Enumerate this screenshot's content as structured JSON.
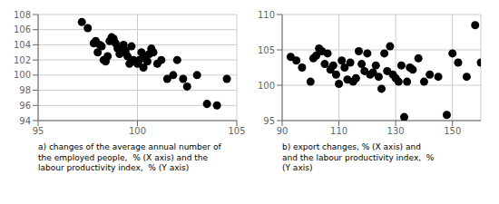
{
  "chart_data": [
    {
      "type": "scatter",
      "title": "a) changes of the average annual number of\nthe employed people,  % (X axis) and the\nlabour productivity index,  % (Y axis)",
      "x": [
        97.2,
        97.5,
        97.8,
        97.9,
        98.0,
        98.1,
        98.2,
        98.3,
        98.4,
        98.5,
        98.6,
        98.7,
        98.8,
        98.9,
        99.0,
        99.1,
        99.2,
        99.3,
        99.4,
        99.5,
        99.6,
        99.7,
        99.8,
        100.0,
        100.1,
        100.2,
        100.3,
        100.4,
        100.5,
        100.6,
        100.7,
        100.8,
        101.0,
        101.2,
        101.5,
        101.8,
        102.0,
        102.3,
        102.5,
        103.0,
        103.5,
        104.0,
        104.5
      ],
      "values": [
        107.0,
        106.2,
        104.2,
        104.5,
        103.0,
        104.0,
        103.8,
        102.0,
        101.8,
        102.5,
        104.5,
        105.0,
        104.8,
        104.2,
        103.5,
        102.8,
        103.0,
        104.0,
        103.2,
        102.5,
        101.5,
        103.8,
        102.0,
        101.5,
        102.0,
        103.0,
        101.0,
        102.5,
        101.8,
        102.8,
        103.5,
        103.0,
        101.5,
        102.0,
        99.5,
        100.0,
        102.0,
        99.5,
        98.5,
        100.0,
        96.2,
        96.0,
        99.5
      ],
      "color": "#000000",
      "xlim": [
        95,
        105
      ],
      "ylim": [
        94,
        108
      ],
      "xticks": [
        95,
        100,
        105
      ],
      "yticks": [
        94,
        96,
        98,
        100,
        102,
        104,
        106,
        108
      ],
      "grid": true
    },
    {
      "type": "scatter",
      "title": "b) export changes, % (X axis) and\nand the labour productivity index,  %\n(Y axis)",
      "x": [
        93,
        95,
        97,
        100,
        101,
        102,
        103,
        104,
        105,
        106,
        107,
        108,
        109,
        110,
        111,
        112,
        113,
        114,
        115,
        116,
        117,
        118,
        119,
        120,
        121,
        122,
        123,
        124,
        125,
        126,
        127,
        128,
        129,
        130,
        131,
        132,
        133,
        134,
        135,
        136,
        138,
        140,
        142,
        145,
        148,
        150,
        152,
        155,
        158,
        160
      ],
      "values": [
        104.0,
        103.5,
        102.5,
        100.5,
        103.8,
        104.2,
        105.2,
        104.8,
        103.0,
        104.5,
        102.2,
        102.8,
        101.5,
        100.2,
        103.5,
        102.5,
        100.8,
        103.2,
        100.5,
        101.0,
        104.8,
        103.0,
        102.0,
        104.5,
        101.5,
        101.8,
        102.8,
        101.2,
        99.5,
        104.5,
        102.0,
        105.5,
        101.5,
        101.0,
        100.5,
        102.8,
        95.5,
        100.5,
        102.5,
        102.2,
        103.8,
        100.5,
        101.5,
        101.2,
        95.8,
        104.5,
        103.2,
        101.2,
        108.5,
        103.2
      ],
      "color": "#000000",
      "xlim": [
        90,
        160
      ],
      "ylim": [
        95,
        110
      ],
      "xticks": [
        90,
        110,
        130,
        150
      ],
      "yticks": [
        95,
        100,
        105,
        110
      ],
      "grid": true
    }
  ]
}
